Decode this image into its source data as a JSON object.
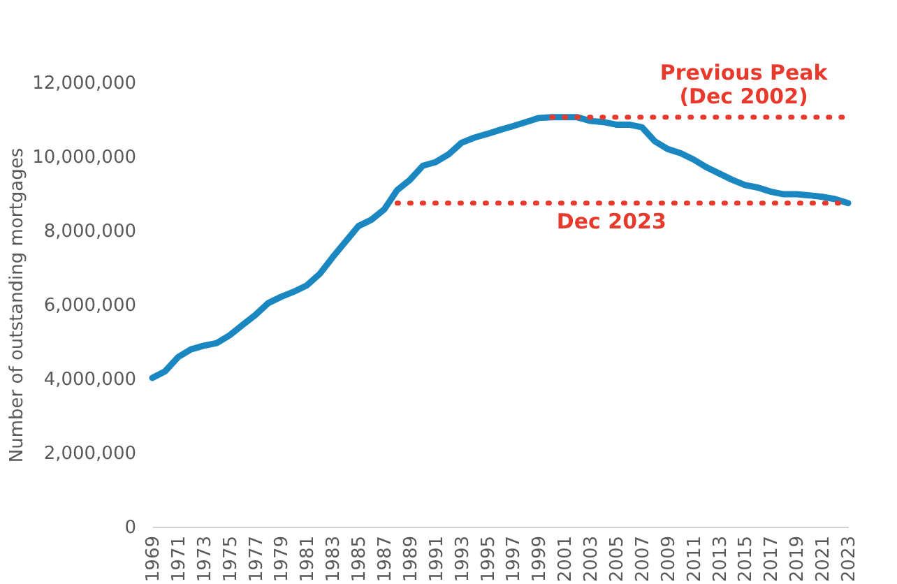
{
  "chart_data": {
    "type": "line",
    "ylabel": "Number of outstanding mortgages",
    "x": [
      1969,
      1970,
      1971,
      1972,
      1973,
      1974,
      1975,
      1976,
      1977,
      1978,
      1979,
      1980,
      1981,
      1982,
      1983,
      1984,
      1985,
      1986,
      1987,
      1988,
      1989,
      1990,
      1991,
      1992,
      1993,
      1994,
      1995,
      1996,
      1997,
      1998,
      1999,
      2000,
      2001,
      2002,
      2003,
      2004,
      2005,
      2006,
      2007,
      2008,
      2009,
      2010,
      2011,
      2012,
      2013,
      2014,
      2015,
      2016,
      2017,
      2018,
      2019,
      2020,
      2021,
      2022,
      2023
    ],
    "series": [
      {
        "color": "#1b87c1",
        "values": [
          4020000,
          4200000,
          4580000,
          4790000,
          4890000,
          4960000,
          5170000,
          5450000,
          5720000,
          6040000,
          6210000,
          6350000,
          6520000,
          6830000,
          7280000,
          7700000,
          8120000,
          8290000,
          8570000,
          9090000,
          9370000,
          9750000,
          9850000,
          10060000,
          10370000,
          10510000,
          10610000,
          10720000,
          10820000,
          10930000,
          11040000,
          11060000,
          11060000,
          11060000,
          10960000,
          10930000,
          10860000,
          10860000,
          10790000,
          10410000,
          10200000,
          10090000,
          9920000,
          9710000,
          9540000,
          9370000,
          9230000,
          9160000,
          9050000,
          8980000,
          8980000,
          8950000,
          8910000,
          8850000,
          8740000
        ]
      }
    ],
    "xlim": [
      1969,
      2023
    ],
    "xticks": [
      1969,
      1971,
      1973,
      1975,
      1977,
      1979,
      1981,
      1983,
      1985,
      1987,
      1989,
      1991,
      1993,
      1995,
      1997,
      1999,
      2001,
      2003,
      2005,
      2007,
      2009,
      2011,
      2013,
      2015,
      2017,
      2019,
      2021,
      2023
    ],
    "ylim": [
      0,
      12000000
    ],
    "yticks": [
      0,
      {
        "value": 2000000,
        "label": "2,000,000"
      },
      {
        "value": 4000000,
        "label": "4,000,000"
      },
      {
        "value": 6000000,
        "label": "6,000,000"
      },
      {
        "value": 8000000,
        "label": "8,000,000"
      },
      {
        "value": 10000000,
        "label": "10,000,000"
      },
      {
        "value": 12000000,
        "label": "12,000,000"
      }
    ],
    "ref_lines": [
      {
        "axis": "y",
        "value": 11060000,
        "label": "Previous Peak\n(Dec 2002)",
        "color": "#e8392d",
        "line_style": "dotted"
      },
      {
        "axis": "y",
        "value": 8740000,
        "label": "Dec 2023",
        "color": "#e8392d",
        "line_style": "dotted"
      }
    ],
    "grid": false,
    "marker": "none",
    "line_style": "solid"
  }
}
